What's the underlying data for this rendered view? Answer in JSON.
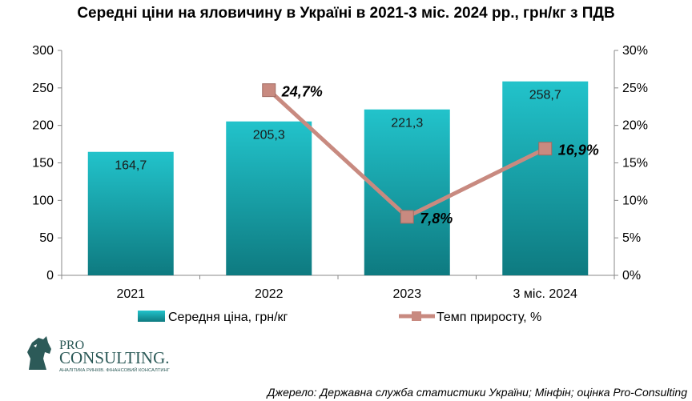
{
  "title": "Середні ціни на яловичину в Україні в 2021-3 міс. 2024 рр., грн/кг з ПДВ",
  "chart_data": {
    "type": "bar",
    "categories": [
      "2021",
      "2022",
      "2023",
      "3 міс. 2024"
    ],
    "series": [
      {
        "name": "Середня ціна, грн/кг",
        "type": "bar",
        "axis": "left",
        "values": [
          164.7,
          205.3,
          221.3,
          258.7
        ],
        "labels": [
          "164,7",
          "205,3",
          "221,3",
          "258,7"
        ],
        "color": "#1aa5ad"
      },
      {
        "name": "Темп приросту, %",
        "type": "line",
        "axis": "right",
        "values": [
          null,
          24.7,
          7.8,
          16.9
        ],
        "labels": [
          "",
          "24,7%",
          "7,8%",
          "16,9%"
        ],
        "color": "#c88a80"
      }
    ],
    "y_left": {
      "ylim": [
        0,
        300
      ],
      "ticks": [
        "0",
        "50",
        "100",
        "150",
        "200",
        "250",
        "300"
      ]
    },
    "y_right": {
      "ylim": [
        0,
        30
      ],
      "ticks": [
        "0%",
        "5%",
        "10%",
        "15%",
        "20%",
        "25%",
        "30%"
      ]
    },
    "grid": false,
    "legend_position": "bottom"
  },
  "logo": {
    "line1": "PRO",
    "line2": "CONSULTING.",
    "tagline": "АНАЛІТИКА РИНКІВ. ФІНАНСОВИЙ КОНСАЛТИНГ"
  },
  "source": "Джерело: Державна служба статистики України; Мінфін; оцінка Pro-Consulting"
}
